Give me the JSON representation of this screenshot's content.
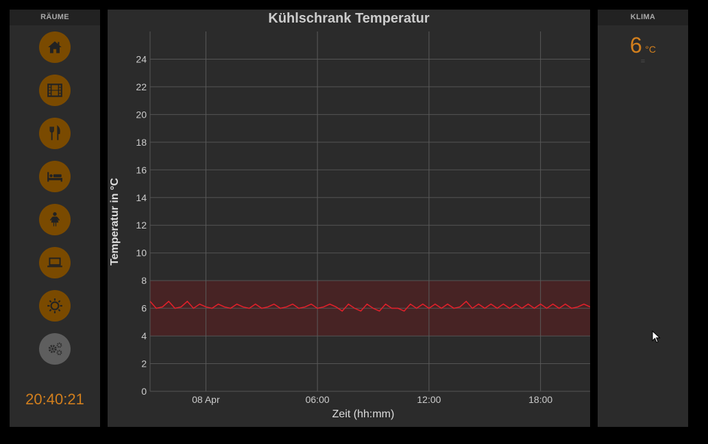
{
  "left_panel": {
    "header": "RÄUME",
    "rooms": [
      {
        "icon": "home-icon"
      },
      {
        "icon": "film-icon"
      },
      {
        "icon": "fork-knife-icon"
      },
      {
        "icon": "bed-icon"
      },
      {
        "icon": "child-icon"
      },
      {
        "icon": "laptop-icon"
      },
      {
        "icon": "sun-icon"
      },
      {
        "icon": "gears-icon"
      }
    ],
    "clock": "20:40:21"
  },
  "right_panel": {
    "header": "KLIMA",
    "temperature": "6",
    "unit": "°C",
    "trend": "="
  },
  "colors": {
    "accent": "#d27f1d",
    "button_bg": "#7a4a00",
    "button_grey": "#5e5e5e",
    "line": "#e0202a",
    "band": "#4a2224",
    "panel_bg": "#2b2b2b"
  },
  "chart_data": {
    "type": "line",
    "title": "Kühlschrank Temperatur",
    "xlabel": "Zeit (hh:mm)",
    "ylabel": "Temperatur in °C",
    "ylim": [
      0,
      26
    ],
    "yticks": [
      0,
      2,
      4,
      6,
      8,
      10,
      12,
      14,
      16,
      18,
      20,
      22,
      24
    ],
    "xlim": [
      "2024-04-07T21:00",
      "2024-04-08T20:40"
    ],
    "xticks": [
      {
        "label": "08 Apr",
        "t": "2024-04-08T00:00"
      },
      {
        "label": "06:00",
        "t": "2024-04-08T06:00"
      },
      {
        "label": "12:00",
        "t": "2024-04-08T12:00"
      },
      {
        "label": "18:00",
        "t": "2024-04-08T18:00"
      }
    ],
    "band": {
      "from": 4,
      "to": 8
    },
    "grid": true,
    "series": [
      {
        "x": [
          "2024-04-07T21:00",
          "2024-04-07T21:20",
          "2024-04-07T21:40",
          "2024-04-07T22:00",
          "2024-04-07T22:20",
          "2024-04-07T22:40",
          "2024-04-07T23:00",
          "2024-04-07T23:20",
          "2024-04-07T23:40",
          "2024-04-08T00:00",
          "2024-04-08T00:20",
          "2024-04-08T00:40",
          "2024-04-08T01:00",
          "2024-04-08T01:20",
          "2024-04-08T01:40",
          "2024-04-08T02:00",
          "2024-04-08T02:20",
          "2024-04-08T02:40",
          "2024-04-08T03:00",
          "2024-04-08T03:20",
          "2024-04-08T03:40",
          "2024-04-08T04:00",
          "2024-04-08T04:20",
          "2024-04-08T04:40",
          "2024-04-08T05:00",
          "2024-04-08T05:20",
          "2024-04-08T05:40",
          "2024-04-08T06:00",
          "2024-04-08T06:20",
          "2024-04-08T06:40",
          "2024-04-08T07:00",
          "2024-04-08T07:20",
          "2024-04-08T07:40",
          "2024-04-08T08:00",
          "2024-04-08T08:20",
          "2024-04-08T08:40",
          "2024-04-08T09:00",
          "2024-04-08T09:20",
          "2024-04-08T09:40",
          "2024-04-08T10:00",
          "2024-04-08T10:20",
          "2024-04-08T10:40",
          "2024-04-08T11:00",
          "2024-04-08T11:20",
          "2024-04-08T11:40",
          "2024-04-08T12:00",
          "2024-04-08T12:20",
          "2024-04-08T12:40",
          "2024-04-08T13:00",
          "2024-04-08T13:20",
          "2024-04-08T13:40",
          "2024-04-08T14:00",
          "2024-04-08T14:20",
          "2024-04-08T14:40",
          "2024-04-08T15:00",
          "2024-04-08T15:20",
          "2024-04-08T15:40",
          "2024-04-08T16:00",
          "2024-04-08T16:20",
          "2024-04-08T16:40",
          "2024-04-08T17:00",
          "2024-04-08T17:20",
          "2024-04-08T17:40",
          "2024-04-08T18:00",
          "2024-04-08T18:20",
          "2024-04-08T18:40",
          "2024-04-08T19:00",
          "2024-04-08T19:20",
          "2024-04-08T19:40",
          "2024-04-08T20:00",
          "2024-04-08T20:20",
          "2024-04-08T20:40"
        ],
        "y": [
          6.5,
          6.0,
          6.1,
          6.5,
          6.0,
          6.1,
          6.5,
          6.0,
          6.3,
          6.1,
          6.0,
          6.3,
          6.1,
          6.0,
          6.3,
          6.1,
          6.0,
          6.3,
          6.0,
          6.1,
          6.3,
          6.0,
          6.1,
          6.3,
          6.0,
          6.1,
          6.3,
          6.0,
          6.1,
          6.3,
          6.1,
          5.8,
          6.3,
          6.0,
          5.8,
          6.3,
          6.0,
          5.8,
          6.3,
          6.0,
          6.0,
          5.8,
          6.3,
          6.0,
          6.3,
          6.0,
          6.3,
          6.0,
          6.3,
          6.0,
          6.1,
          6.5,
          6.0,
          6.3,
          6.0,
          6.3,
          6.0,
          6.3,
          6.0,
          6.3,
          6.0,
          6.3,
          6.0,
          6.3,
          6.0,
          6.3,
          6.0,
          6.3,
          6.0,
          6.1,
          6.3,
          6.1
        ]
      }
    ]
  }
}
